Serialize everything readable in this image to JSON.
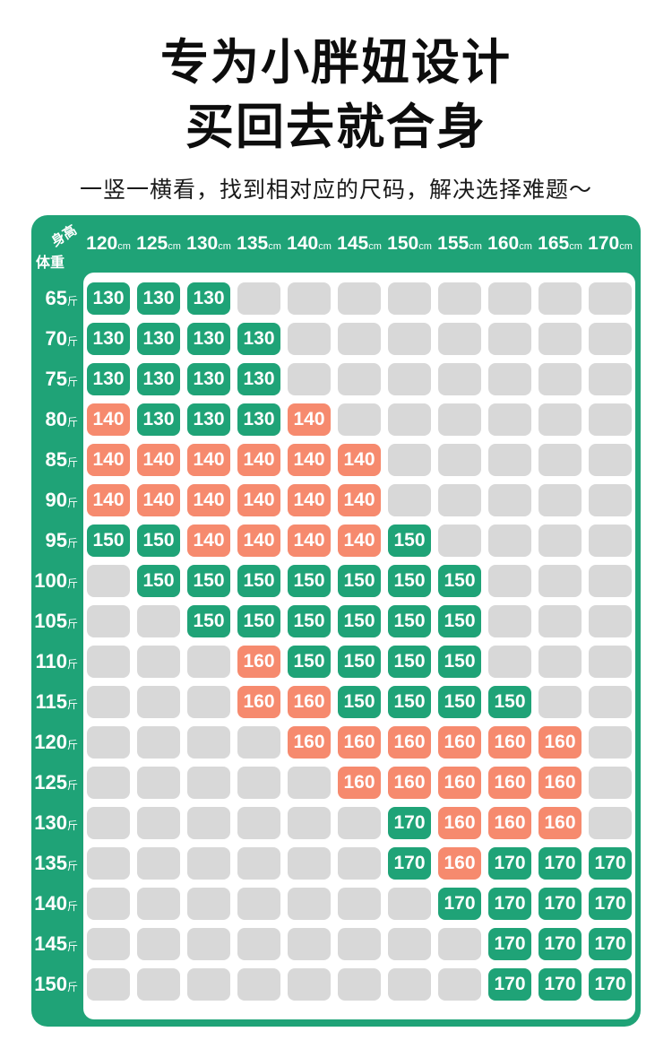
{
  "page": {
    "title_line1": "专为小胖妞设计",
    "title_line2": "买回去就合身",
    "subtitle": "一竖一横看，找到相对应的尺码，解决选择难题～"
  },
  "colors": {
    "green": "#1FA377",
    "salmon": "#F68A6E",
    "empty_gray": "#D8D8D8"
  },
  "chart_data": {
    "type": "heatmap",
    "x_axis_label": "身高",
    "y_axis_label": "体重",
    "x_unit": "cm",
    "y_unit": "斤",
    "columns": [
      "120",
      "125",
      "130",
      "135",
      "140",
      "145",
      "150",
      "155",
      "160",
      "165",
      "170"
    ],
    "rows": [
      "65",
      "70",
      "75",
      "80",
      "85",
      "90",
      "95",
      "100",
      "105",
      "110",
      "115",
      "120",
      "125",
      "130",
      "135",
      "140",
      "145",
      "150"
    ],
    "cell_color_codes": {
      "g": "green",
      "s": "salmon",
      "": "empty"
    },
    "cells": [
      [
        "130g",
        "130g",
        "130g",
        "",
        "",
        "",
        "",
        "",
        "",
        "",
        ""
      ],
      [
        "130g",
        "130g",
        "130g",
        "130g",
        "",
        "",
        "",
        "",
        "",
        "",
        ""
      ],
      [
        "130g",
        "130g",
        "130g",
        "130g",
        "",
        "",
        "",
        "",
        "",
        "",
        ""
      ],
      [
        "140s",
        "130g",
        "130g",
        "130g",
        "140s",
        "",
        "",
        "",
        "",
        "",
        ""
      ],
      [
        "140s",
        "140s",
        "140s",
        "140s",
        "140s",
        "140s",
        "",
        "",
        "",
        "",
        ""
      ],
      [
        "140s",
        "140s",
        "140s",
        "140s",
        "140s",
        "140s",
        "",
        "",
        "",
        "",
        ""
      ],
      [
        "150g",
        "150g",
        "140s",
        "140s",
        "140s",
        "140s",
        "150g",
        "",
        "",
        "",
        ""
      ],
      [
        "",
        "150g",
        "150g",
        "150g",
        "150g",
        "150g",
        "150g",
        "150g",
        "",
        "",
        ""
      ],
      [
        "",
        "",
        "150g",
        "150g",
        "150g",
        "150g",
        "150g",
        "150g",
        "",
        "",
        ""
      ],
      [
        "",
        "",
        "",
        "160s",
        "150g",
        "150g",
        "150g",
        "150g",
        "",
        "",
        ""
      ],
      [
        "",
        "",
        "",
        "160s",
        "160s",
        "150g",
        "150g",
        "150g",
        "150g",
        "",
        ""
      ],
      [
        "",
        "",
        "",
        "",
        "160s",
        "160s",
        "160s",
        "160s",
        "160s",
        "160s",
        ""
      ],
      [
        "",
        "",
        "",
        "",
        "",
        "160s",
        "160s",
        "160s",
        "160s",
        "160s",
        ""
      ],
      [
        "",
        "",
        "",
        "",
        "",
        "",
        "170g",
        "160s",
        "160s",
        "160s",
        ""
      ],
      [
        "",
        "",
        "",
        "",
        "",
        "",
        "170g",
        "160s",
        "170g",
        "170g",
        "170g"
      ],
      [
        "",
        "",
        "",
        "",
        "",
        "",
        "",
        "170g",
        "170g",
        "170g",
        "170g"
      ],
      [
        "",
        "",
        "",
        "",
        "",
        "",
        "",
        "",
        "170g",
        "170g",
        "170g"
      ],
      [
        "",
        "",
        "",
        "",
        "",
        "",
        "",
        "",
        "170g",
        "170g",
        "170g"
      ]
    ]
  }
}
